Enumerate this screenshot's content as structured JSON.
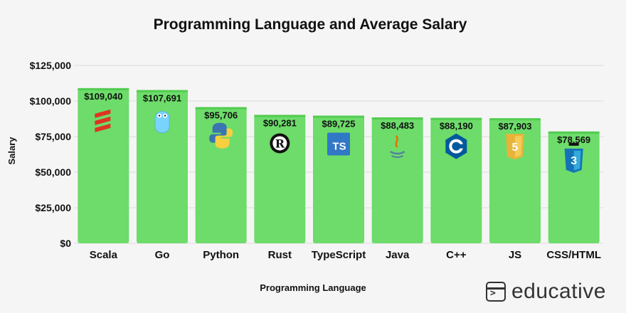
{
  "chart_data": {
    "type": "bar",
    "title": "Programming Language and Average Salary",
    "xlabel": "Programming Language",
    "ylabel": "Salary",
    "ylim": [
      0,
      125000
    ],
    "yticks": [
      "$0",
      "$25,000",
      "$50,000",
      "$75,000",
      "$100,000",
      "$125,000"
    ],
    "ytick_values": [
      0,
      25000,
      50000,
      75000,
      100000,
      125000
    ],
    "grid": true,
    "bar_color": "#6ddc6a",
    "categories": [
      "Scala",
      "Go",
      "Python",
      "Rust",
      "TypeScript",
      "Java",
      "C++",
      "JS",
      "CSS/HTML"
    ],
    "values": [
      109040,
      107691,
      95706,
      90281,
      89725,
      88483,
      88190,
      87903,
      78569
    ],
    "value_labels": [
      "$109,040",
      "$107,691",
      "$95,706",
      "$90,281",
      "$89,725",
      "$88,483",
      "$88,190",
      "$87,903",
      "$78,569"
    ],
    "icons": [
      "scala-logo-icon",
      "go-gopher-icon",
      "python-logo-icon",
      "rust-logo-icon",
      "typescript-logo-icon",
      "java-logo-icon",
      "cpp-logo-icon",
      "js-logo-icon",
      "css-logo-icon"
    ]
  },
  "brand": {
    "name": "educative",
    "icon": "terminal-icon"
  }
}
